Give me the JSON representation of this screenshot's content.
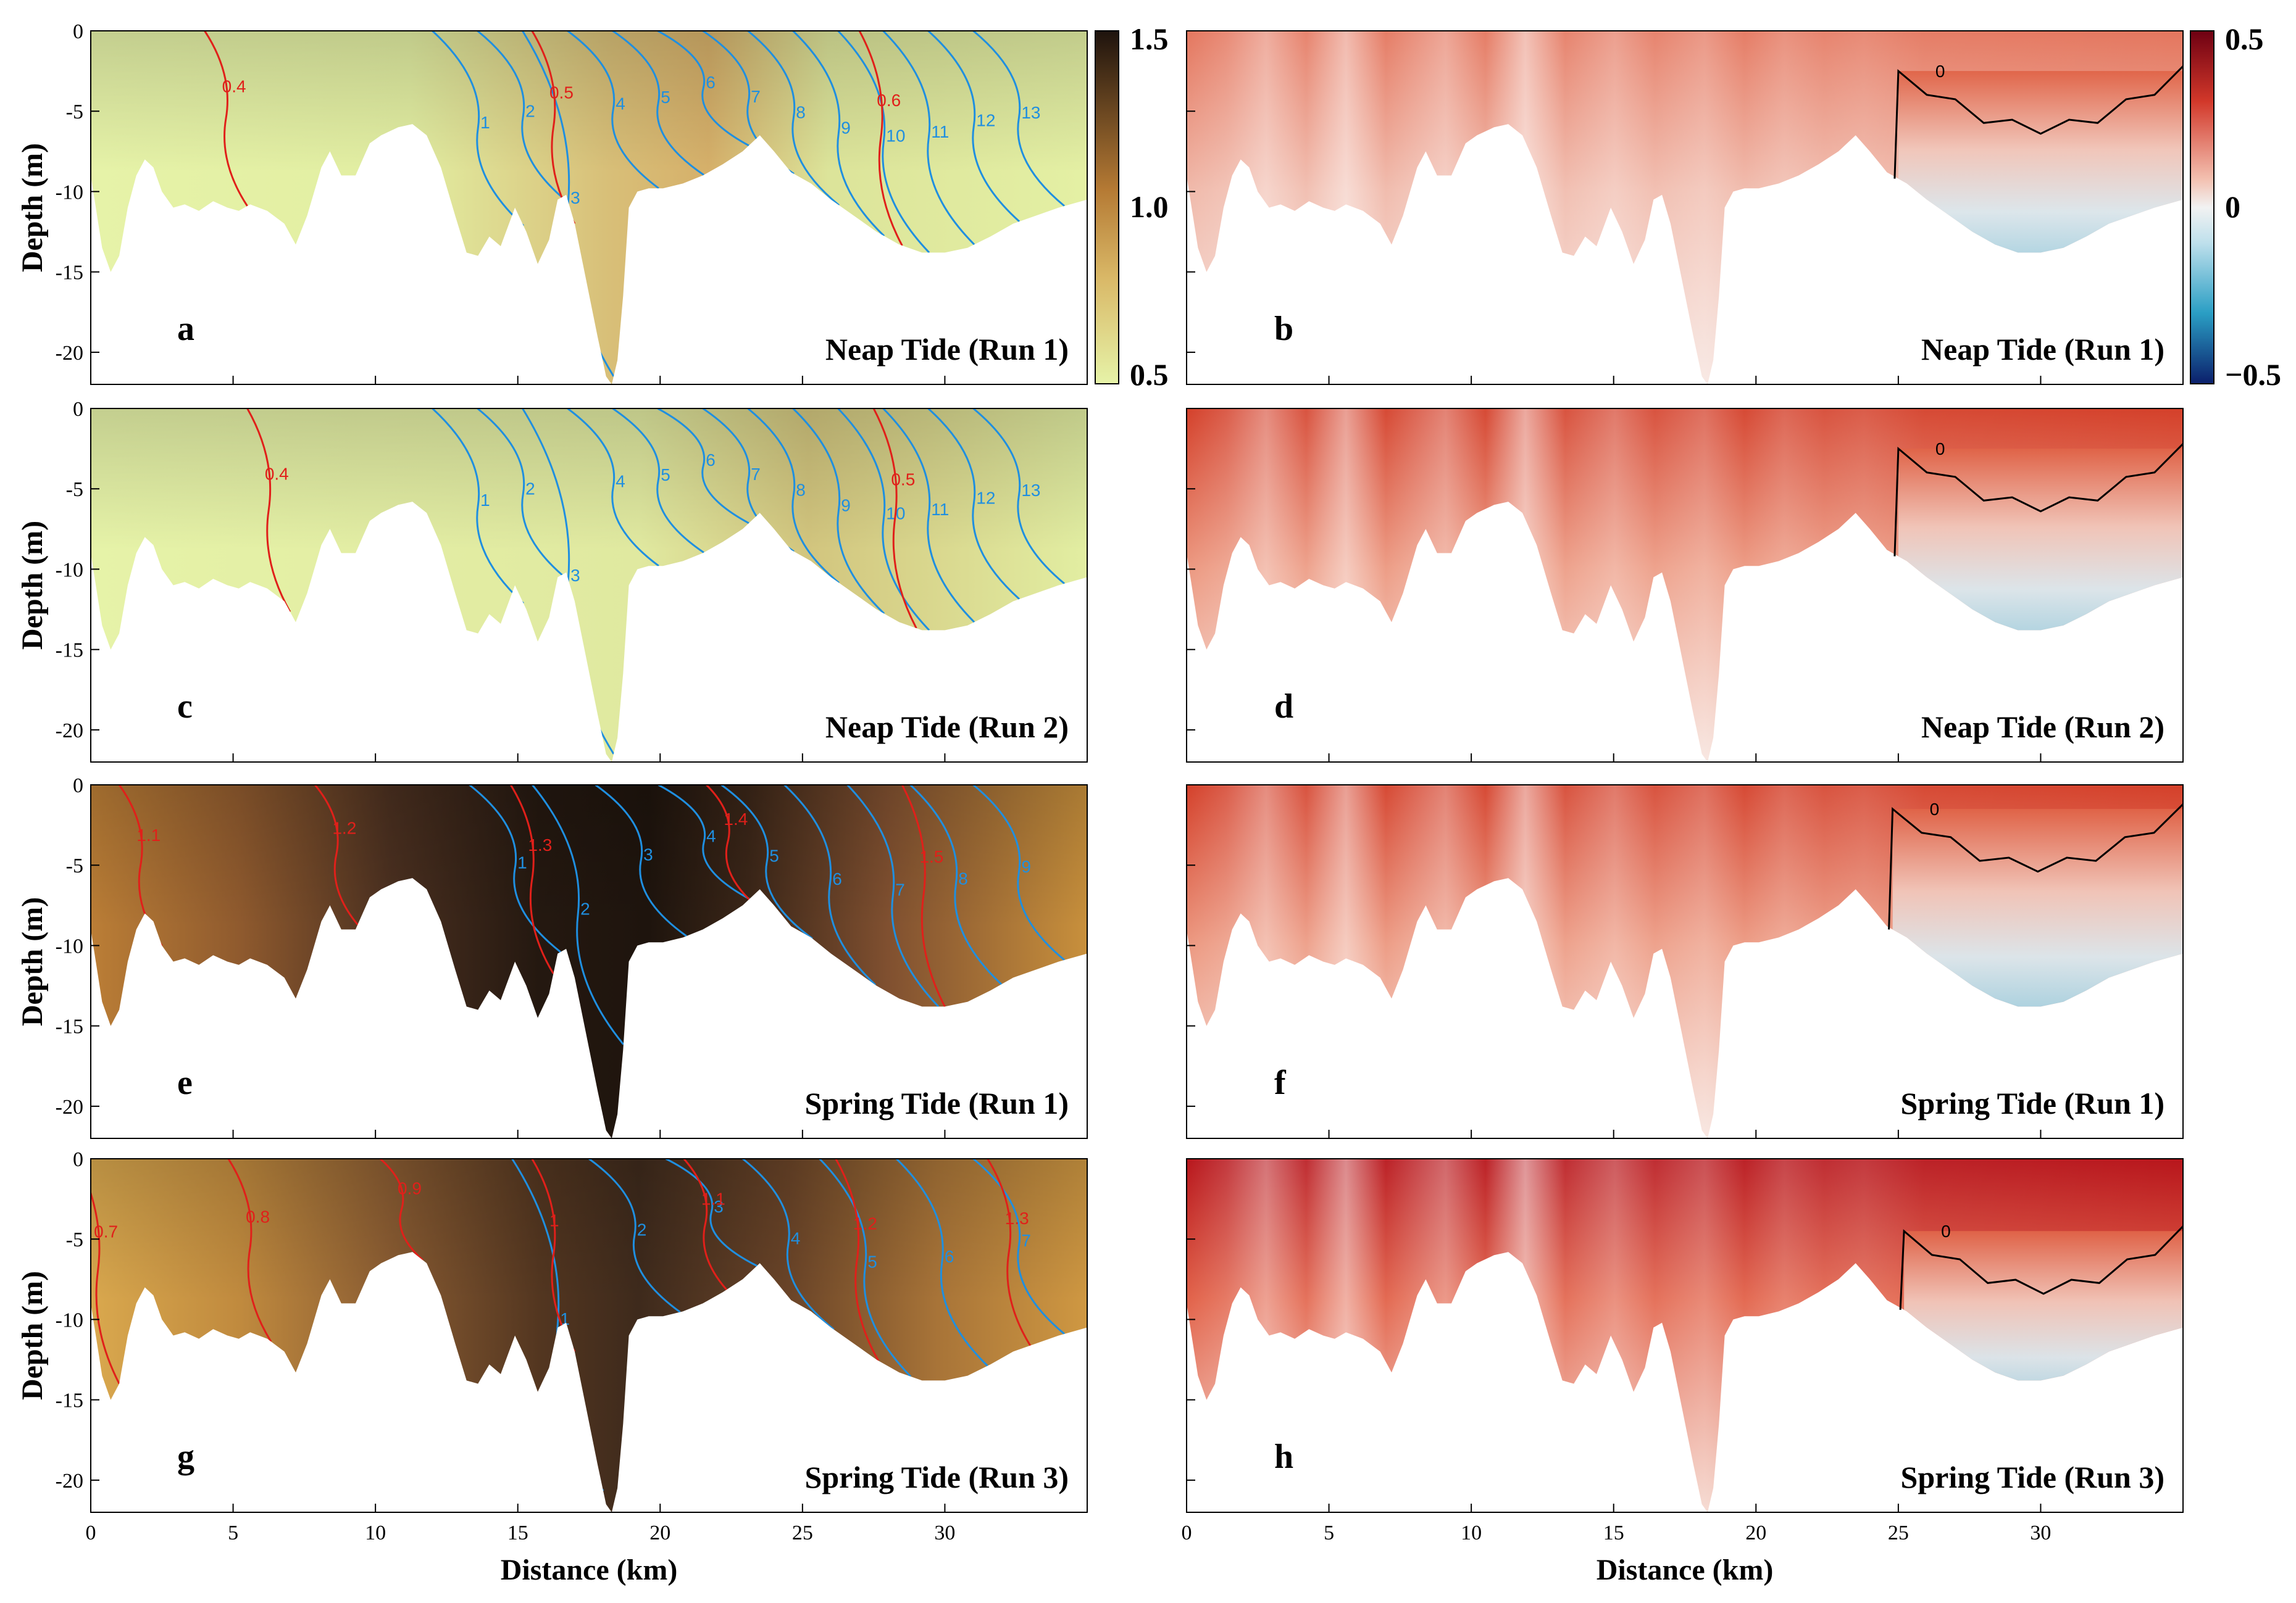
{
  "colors": {
    "salinity_contour": "#1f8fe0",
    "ratio_contour": "#e0201a",
    "zero_contour": "#000000",
    "seq_low": "#e6f2a8",
    "seq_mid": "#c68a3c",
    "seq_high": "#1e130d",
    "div_neg_deep": "#0b1f6b",
    "div_neg": "#2aa0c8",
    "div_zero": "#f2f2f2",
    "div_pos": "#e0503c",
    "div_pos_deep": "#6e0012"
  },
  "axes": {
    "xlabel": "Distance (km)",
    "ylabel": "Depth (m)",
    "x_ticks": [
      "0",
      "5",
      "10",
      "15",
      "20",
      "25",
      "30"
    ],
    "y_ticks": [
      "0",
      "-5",
      "-10",
      "-15",
      "-20"
    ]
  },
  "colorbars": {
    "left": {
      "top": "1.5",
      "mid": "1.0",
      "bottom": "0.5"
    },
    "right": {
      "top": "0.5",
      "mid": "0",
      "bottom": "−0.5"
    }
  },
  "chart_data": {
    "type": "heatmap",
    "xlabel": "Distance (km)",
    "ylabel": "Depth (m)",
    "xlim": [
      0,
      35
    ],
    "ylim": [
      -22,
      0
    ],
    "bathymetry": {
      "x": [
        0.0,
        0.4,
        0.7,
        1.0,
        1.3,
        1.6,
        1.9,
        2.2,
        2.5,
        2.9,
        3.3,
        3.8,
        4.3,
        4.8,
        5.2,
        5.6,
        6.2,
        6.8,
        7.2,
        7.6,
        8.1,
        8.4,
        8.8,
        9.3,
        9.8,
        10.2,
        10.8,
        11.3,
        11.8,
        12.3,
        12.8,
        13.2,
        13.6,
        14.0,
        14.4,
        14.9,
        15.3,
        15.7,
        16.1,
        16.4,
        16.7,
        17.0,
        17.4,
        17.8,
        18.1,
        18.3,
        18.5,
        18.7,
        18.9,
        19.2,
        19.6,
        20.1,
        20.8,
        21.5,
        22.2,
        22.9,
        23.5,
        24.0,
        24.6,
        25.3,
        26.0,
        26.8,
        27.6,
        28.4,
        29.2,
        30.0,
        30.8,
        31.6,
        32.4,
        33.2,
        34.0,
        35.0
      ],
      "depth": [
        -9.0,
        -13.5,
        -15.0,
        -14.0,
        -11.0,
        -9.0,
        -8.0,
        -8.5,
        -10.0,
        -11.0,
        -10.8,
        -11.2,
        -10.6,
        -11.0,
        -11.2,
        -10.8,
        -11.2,
        -12.0,
        -13.3,
        -11.5,
        -8.5,
        -7.5,
        -9.0,
        -9.0,
        -7.0,
        -6.5,
        -6.0,
        -5.8,
        -6.5,
        -8.5,
        -11.5,
        -13.8,
        -14.0,
        -12.8,
        -13.4,
        -11.0,
        -12.5,
        -14.5,
        -13.0,
        -10.5,
        -10.2,
        -12.0,
        -15.5,
        -19.0,
        -21.5,
        -22.0,
        -20.5,
        -16.5,
        -11.0,
        -10.0,
        -9.8,
        -9.8,
        -9.5,
        -9.0,
        -8.3,
        -7.5,
        -6.5,
        -7.5,
        -8.8,
        -9.5,
        -10.5,
        -11.5,
        -12.5,
        -13.3,
        -13.8,
        -13.8,
        -13.5,
        -12.8,
        -12.0,
        -11.5,
        -11.0,
        -10.5
      ]
    },
    "panels": [
      {
        "id": "a",
        "caption": "Neap Tide (Run 1)",
        "variable": "sequential",
        "colorbar_range": [
          0.5,
          1.5
        ],
        "salinity_levels": [
          "1",
          "2",
          "3",
          "4",
          "5",
          "6",
          "7",
          "8",
          "9",
          "10",
          "11",
          "12",
          "13"
        ],
        "red_levels": [
          "0.4",
          "0.5",
          "0.6"
        ]
      },
      {
        "id": "b",
        "caption": "Neap Tide (Run 1)",
        "variable": "diverging",
        "colorbar_range": [
          -0.5,
          0.5
        ],
        "contour_levels": [
          "0"
        ]
      },
      {
        "id": "c",
        "caption": "Neap Tide (Run 2)",
        "variable": "sequential",
        "colorbar_range": [
          0.5,
          1.5
        ],
        "salinity_levels": [
          "1",
          "2",
          "3",
          "4",
          "5",
          "6",
          "7",
          "8",
          "9",
          "10",
          "11",
          "12",
          "13"
        ],
        "red_levels": [
          "0.4",
          "0.5"
        ]
      },
      {
        "id": "d",
        "caption": "Neap Tide (Run 2)",
        "variable": "diverging",
        "colorbar_range": [
          -0.5,
          0.5
        ],
        "contour_levels": [
          "0"
        ]
      },
      {
        "id": "e",
        "caption": "Spring Tide (Run 1)",
        "variable": "sequential",
        "colorbar_range": [
          0.5,
          1.5
        ],
        "salinity_levels": [
          "1",
          "2",
          "3",
          "4",
          "5",
          "6",
          "7",
          "8",
          "9"
        ],
        "red_levels": [
          "1.1",
          "1.2",
          "1.3",
          "1.4",
          "1.5"
        ]
      },
      {
        "id": "f",
        "caption": "Spring Tide (Run 1)",
        "variable": "diverging",
        "colorbar_range": [
          -0.5,
          0.5
        ],
        "contour_levels": [
          "0"
        ]
      },
      {
        "id": "g",
        "caption": "Spring Tide (Run 3)",
        "variable": "sequential",
        "colorbar_range": [
          0.5,
          1.5
        ],
        "salinity_levels": [
          "1",
          "2",
          "3",
          "4",
          "5",
          "6",
          "7"
        ],
        "red_levels": [
          "0.7",
          "0.8",
          "0.9",
          "1",
          "1.1",
          "1.2",
          "1.3"
        ]
      },
      {
        "id": "h",
        "caption": "Spring Tide (Run 3)",
        "variable": "diverging",
        "colorbar_range": [
          -0.5,
          0.5
        ],
        "contour_levels": [
          "0"
        ]
      }
    ]
  }
}
